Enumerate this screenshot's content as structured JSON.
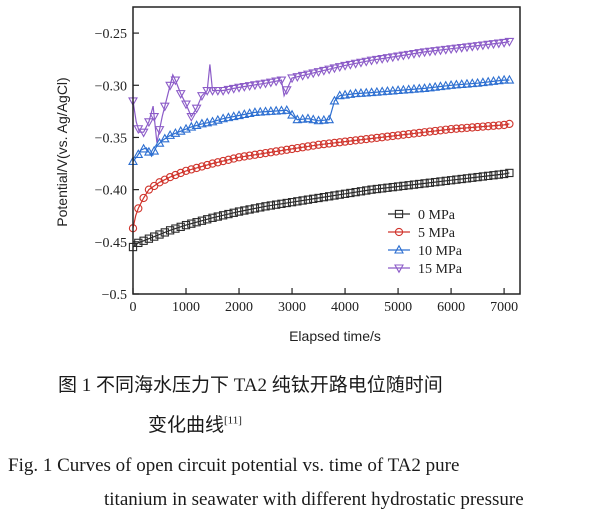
{
  "chart_data": {
    "type": "line",
    "ylabel": "Potential/V(vs. Ag/AgCl)",
    "xlabel": "Elapsed time/s",
    "xlim": [
      0,
      7300
    ],
    "ylim": [
      -0.5,
      -0.225
    ],
    "xticks": [
      0,
      1000,
      2000,
      3000,
      4000,
      5000,
      6000,
      7000
    ],
    "yticks": [
      -0.25,
      -0.3,
      -0.35,
      -0.4,
      -0.45,
      -0.5
    ],
    "ytick_labels": [
      "-0.25",
      "-0.30",
      "-0.35",
      "-0.40",
      "-0.45",
      "-0.5"
    ],
    "legend_position": "lower-right",
    "grid": false,
    "series": [
      {
        "name": "0 MPa",
        "marker": "square",
        "color": "#2b2b2b",
        "x": [
          0,
          100,
          200,
          300,
          500,
          700,
          1000,
          1500,
          2000,
          2500,
          3000,
          3500,
          4000,
          4500,
          5000,
          5500,
          6000,
          6500,
          7000,
          7100
        ],
        "y": [
          -0.455,
          -0.451,
          -0.449,
          -0.447,
          -0.443,
          -0.439,
          -0.434,
          -0.427,
          -0.421,
          -0.416,
          -0.412,
          -0.408,
          -0.404,
          -0.4,
          -0.397,
          -0.394,
          -0.391,
          -0.388,
          -0.385,
          -0.384
        ]
      },
      {
        "name": "5 MPa",
        "marker": "circle",
        "color": "#d0342c",
        "x": [
          0,
          50,
          100,
          200,
          300,
          500,
          700,
          1000,
          1500,
          2000,
          2500,
          3000,
          3500,
          4000,
          4500,
          5000,
          5500,
          6000,
          6500,
          7000,
          7100
        ],
        "y": [
          -0.437,
          -0.425,
          -0.418,
          -0.408,
          -0.4,
          -0.393,
          -0.388,
          -0.382,
          -0.375,
          -0.369,
          -0.365,
          -0.361,
          -0.357,
          -0.354,
          -0.351,
          -0.348,
          -0.345,
          -0.342,
          -0.34,
          -0.338,
          -0.337
        ]
      },
      {
        "name": "10 MPa",
        "marker": "triangle-up",
        "color": "#2d6fd1",
        "x": [
          0,
          80,
          150,
          250,
          350,
          450,
          550,
          700,
          900,
          1100,
          1300,
          1500,
          1700,
          2000,
          2300,
          2600,
          2900,
          3100,
          3300,
          3500,
          3700,
          3800,
          3900,
          4200,
          4500,
          5000,
          5500,
          6000,
          6500,
          7000,
          7100
        ],
        "y": [
          -0.373,
          -0.368,
          -0.362,
          -0.36,
          -0.368,
          -0.358,
          -0.353,
          -0.348,
          -0.344,
          -0.34,
          -0.337,
          -0.335,
          -0.332,
          -0.329,
          -0.326,
          -0.325,
          -0.324,
          -0.333,
          -0.332,
          -0.334,
          -0.333,
          -0.315,
          -0.31,
          -0.308,
          -0.307,
          -0.305,
          -0.303,
          -0.3,
          -0.298,
          -0.295,
          -0.295
        ]
      },
      {
        "name": "15 MPa",
        "marker": "triangle-down",
        "color": "#8c5cc8",
        "x": [
          0,
          60,
          120,
          200,
          300,
          380,
          450,
          550,
          650,
          750,
          800,
          900,
          1000,
          1100,
          1200,
          1300,
          1400,
          1450,
          1500,
          1700,
          2000,
          2500,
          2800,
          2850,
          3000,
          3500,
          4000,
          4500,
          5000,
          5500,
          6000,
          6500,
          7000,
          7100
        ],
        "y": [
          -0.315,
          -0.335,
          -0.345,
          -0.345,
          -0.335,
          -0.32,
          -0.355,
          -0.33,
          -0.31,
          -0.29,
          -0.295,
          -0.308,
          -0.318,
          -0.33,
          -0.322,
          -0.31,
          -0.305,
          -0.28,
          -0.305,
          -0.305,
          -0.302,
          -0.298,
          -0.295,
          -0.31,
          -0.293,
          -0.287,
          -0.281,
          -0.276,
          -0.272,
          -0.268,
          -0.265,
          -0.262,
          -0.259,
          -0.258
        ]
      }
    ]
  },
  "caption": {
    "cn_line1": "图 1    不同海水压力下 TA2 纯钛开路电位随时间",
    "cn_line2": "变化曲线",
    "cn_ref": "[11]",
    "en_line1": "Fig. 1    Curves of open circuit potential vs. time of TA2 pure",
    "en_line2": "titanium in seawater with different hydrostatic pressure"
  }
}
